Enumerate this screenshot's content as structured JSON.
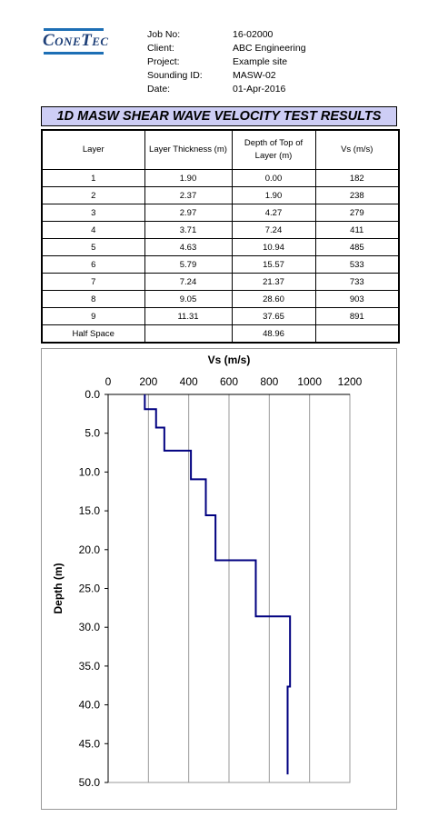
{
  "header": {
    "logo": "ConeTec",
    "fields": [
      {
        "label": "Job No:",
        "value": "16-02000"
      },
      {
        "label": "Client:",
        "value": "ABC Engineering"
      },
      {
        "label": "Project:",
        "value": "Example site"
      },
      {
        "label": "Sounding ID:",
        "value": "MASW-02"
      },
      {
        "label": "Date:",
        "value": "01-Apr-2016"
      }
    ]
  },
  "title": "1D MASW SHEAR WAVE VELOCITY TEST RESULTS",
  "table": {
    "columns": [
      "Layer",
      "Layer Thickness (m)",
      "Depth of Top of Layer (m)",
      "Vs (m/s)"
    ],
    "rows": [
      [
        "1",
        "1.90",
        "0.00",
        "182"
      ],
      [
        "2",
        "2.37",
        "1.90",
        "238"
      ],
      [
        "3",
        "2.97",
        "4.27",
        "279"
      ],
      [
        "4",
        "3.71",
        "7.24",
        "411"
      ],
      [
        "5",
        "4.63",
        "10.94",
        "485"
      ],
      [
        "6",
        "5.79",
        "15.57",
        "533"
      ],
      [
        "7",
        "7.24",
        "21.37",
        "733"
      ],
      [
        "8",
        "9.05",
        "28.60",
        "903"
      ],
      [
        "9",
        "11.31",
        "37.65",
        "891"
      ],
      [
        "Half Space",
        null,
        "48.96",
        null
      ]
    ]
  },
  "chart_data": {
    "type": "line",
    "x_label": "Vs (m/s)",
    "y_label": "Depth (m)",
    "x_axis_position": "top",
    "y_inverted": true,
    "grid": "x",
    "color": "#000080",
    "x": [
      182,
      182,
      238,
      238,
      279,
      279,
      411,
      411,
      485,
      485,
      533,
      533,
      733,
      733,
      903,
      903,
      891,
      891
    ],
    "y": [
      0,
      1.9,
      1.9,
      4.27,
      4.27,
      7.24,
      7.24,
      10.94,
      10.94,
      15.57,
      15.57,
      21.37,
      21.37,
      28.6,
      28.6,
      37.65,
      37.65,
      48.96
    ],
    "xlim": [
      0,
      1200
    ],
    "xticks": [
      0,
      200,
      400,
      600,
      800,
      1000,
      1200
    ],
    "ylim": [
      0,
      50
    ],
    "yticks": [
      {
        "value": 0,
        "label": "0.0"
      },
      {
        "value": 5,
        "label": "5.0"
      },
      {
        "value": 10,
        "label": "10.0"
      },
      {
        "value": 15,
        "label": "15.0"
      },
      {
        "value": 20,
        "label": "20.0"
      },
      {
        "value": 25,
        "label": "25.0"
      },
      {
        "value": 30,
        "label": "30.0"
      },
      {
        "value": 35,
        "label": "35.0"
      },
      {
        "value": 40,
        "label": "40.0"
      },
      {
        "value": 45,
        "label": "45.0"
      },
      {
        "value": 50,
        "label": "50.0"
      }
    ]
  }
}
